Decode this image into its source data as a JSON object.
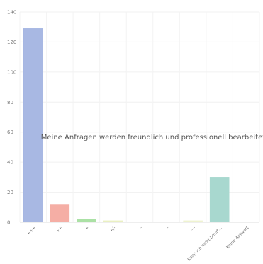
{
  "chart_data": {
    "type": "bar",
    "title": "Meine Anfragen werden freundlich und professionell bearbeitet",
    "xlabel": "",
    "ylabel": "",
    "ylim": [
      0,
      140
    ],
    "yticks": [
      0,
      20,
      40,
      60,
      80,
      100,
      120,
      140
    ],
    "grid": true,
    "categories": [
      "+++",
      "++",
      "+",
      "+/-",
      "-",
      "--",
      "---",
      "Kann ich nicht beurt...",
      "Keine Antwort"
    ],
    "values": [
      129,
      12,
      2,
      1,
      0,
      0,
      1,
      30,
      0
    ],
    "colors": [
      "#a3b4e2",
      "#f4aaa0",
      "#a6dfa0",
      "#e9f0c0",
      "#cccccc",
      "#cccccc",
      "#eef2cf",
      "#a3d6cc",
      "#cccccc"
    ]
  }
}
